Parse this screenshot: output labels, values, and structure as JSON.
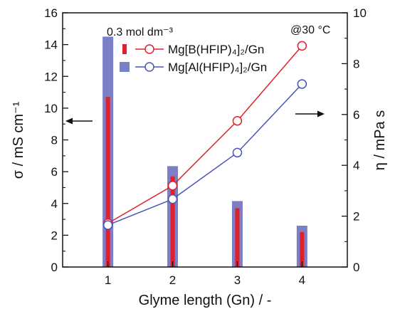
{
  "chart_data": {
    "type": "bar",
    "xlabel": "Glyme length (Gn) / -",
    "categories": [
      "1",
      "2",
      "3",
      "4"
    ],
    "left_axis": {
      "label": "σ / mS cm⁻¹",
      "ylim": [
        0,
        16
      ],
      "ticks": [
        0,
        2,
        4,
        6,
        8,
        10,
        12,
        14,
        16
      ]
    },
    "right_axis": {
      "label": "η / mPa s",
      "ylim": [
        0,
        10
      ],
      "ticks": [
        0,
        2,
        4,
        6,
        8,
        10
      ]
    },
    "annotations": {
      "concentration": "0.3 mol dm⁻³",
      "temperature": "@30 °C"
    },
    "series": [
      {
        "name": "Mg[B(HFIP)4]2/Gn",
        "kind": "bar",
        "axis": "left",
        "color": "#e0202a",
        "values": [
          10.7,
          5.7,
          3.7,
          2.2
        ]
      },
      {
        "name": "Mg[Al(HFIP)4]2/Gn",
        "kind": "bar",
        "axis": "left",
        "color": "#7b7fc6",
        "values": [
          14.5,
          6.35,
          4.15,
          2.6
        ]
      },
      {
        "name": "Mg[B(HFIP)4]2/Gn",
        "kind": "line",
        "axis": "right",
        "color": "#e0202a",
        "values": [
          1.72,
          3.2,
          5.75,
          8.7
        ]
      },
      {
        "name": "Mg[Al(HFIP)4]2/Gn",
        "kind": "line",
        "axis": "right",
        "color": "#4a55b5",
        "values": [
          1.65,
          2.67,
          4.5,
          7.2
        ]
      }
    ],
    "legend_labels": [
      "Mg[B(HFIP)₄]₂/Gn",
      "Mg[Al(HFIP)₄]₂/Gn"
    ],
    "legend_position": "top-left",
    "grid": false
  }
}
